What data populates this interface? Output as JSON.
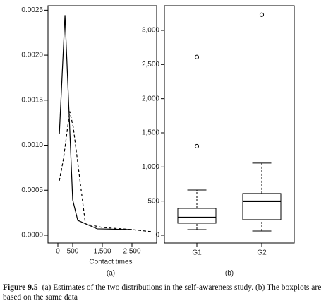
{
  "chart_data": [
    {
      "type": "line",
      "xlabel": "Contact times",
      "panel_label": "(a)",
      "xlim": [
        -333,
        3333
      ],
      "ylim": [
        -8.65e-05,
        0.00255
      ],
      "xticks": [
        0,
        500,
        {
          "value": 1500,
          "label": "1,500"
        },
        {
          "value": 2500,
          "label": "2,500"
        }
      ],
      "yticks": [
        {
          "value": 0,
          "label": "0.0000"
        },
        0.0005,
        {
          "value": 0.001,
          "label": "0.0010"
        },
        {
          "value": 0.0015,
          "label": "0.0015"
        },
        {
          "value": 0.002,
          "label": "0.0020"
        },
        0.0025
      ],
      "series": [
        {
          "color": "#000000",
          "dash": "solid",
          "x": [
            50,
            240,
            500,
            670,
            1000,
            1330,
            2500
          ],
          "values": [
            0.001124,
            0.002445,
            0.000393,
            0.000165,
            0.000118,
            7.1e-05,
            6.3e-05
          ]
        },
        {
          "color": "#000000",
          "dash": "dashed",
          "x": [
            50,
            190,
            400,
            520,
            930,
            1500,
            2500,
            3170
          ],
          "values": [
            0.000605,
            0.00085,
            0.001376,
            0.0012,
            0.000126,
            8.6e-05,
            6.3e-05,
            3.9e-05
          ]
        }
      ]
    },
    {
      "type": "boxplot",
      "panel_label": "(b)",
      "ylim": [
        -114,
        3362
      ],
      "yticks": [
        0,
        500,
        {
          "value": 1000,
          "label": "1,000"
        },
        {
          "value": 1500,
          "label": "1,500"
        },
        {
          "value": 2000,
          "label": "2,000"
        },
        {
          "value": 2500,
          "label": "2,500"
        },
        {
          "value": 3000,
          "label": "3,000"
        }
      ],
      "categories": [
        "G1",
        "G2"
      ],
      "boxes": [
        {
          "min": 83,
          "q1": 176,
          "median": 259,
          "q3": 393,
          "max": 662,
          "outliers": [
            1304,
            2609
          ]
        },
        {
          "min": 62,
          "q1": 228,
          "median": 497,
          "q3": 611,
          "max": 1056,
          "outliers": [
            3230
          ]
        }
      ]
    }
  ],
  "caption": {
    "label": "Figure 9.5",
    "text": "(a) Estimates of the two distributions in the self-awareness study. (b) The boxplots are based on the same data"
  }
}
